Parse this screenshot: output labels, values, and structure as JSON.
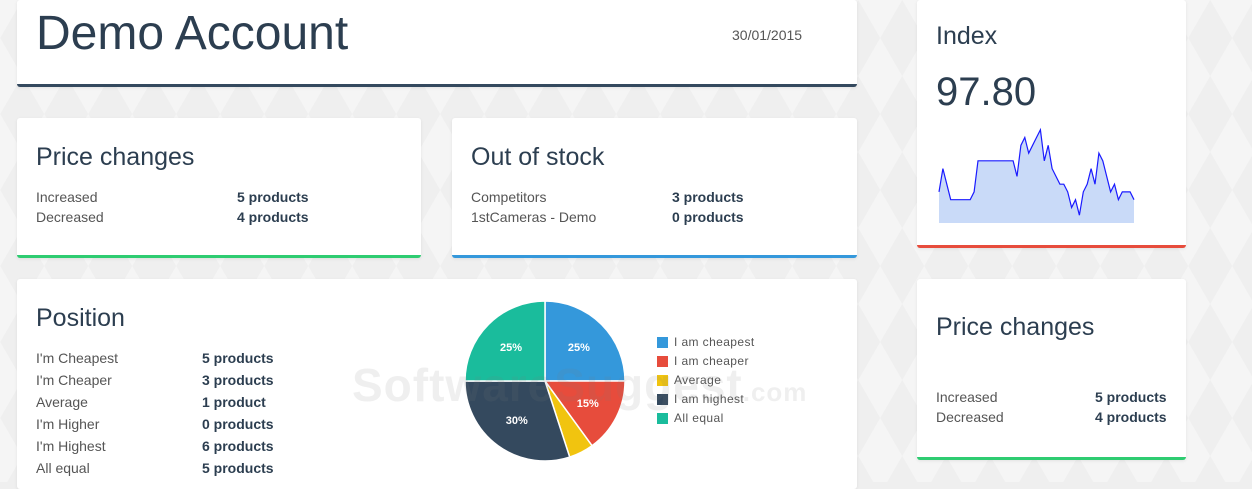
{
  "header": {
    "title": "Demo Account",
    "date": "30/01/2015"
  },
  "price_changes": {
    "title": "Price changes",
    "rows": [
      {
        "label": "Increased",
        "value": "5 products"
      },
      {
        "label": "Decreased",
        "value": "4 products"
      }
    ]
  },
  "out_of_stock": {
    "title": "Out of stock",
    "rows": [
      {
        "label": "Competitors",
        "value": "3 products"
      },
      {
        "label": "1stCameras - Demo",
        "value": "0 products"
      }
    ]
  },
  "position": {
    "title": "Position",
    "rows": [
      {
        "label": "I'm Cheapest",
        "value": "5 products"
      },
      {
        "label": "I'm Cheaper",
        "value": "3 products"
      },
      {
        "label": "Average",
        "value": "1 product"
      },
      {
        "label": "I'm Higher",
        "value": "0 products"
      },
      {
        "label": "I'm Highest",
        "value": "6 products"
      },
      {
        "label": "All equal",
        "value": "5 products"
      }
    ]
  },
  "index": {
    "title": "Index",
    "value": "97.80"
  },
  "price_changes_right": {
    "title": "Price changes",
    "rows": [
      {
        "label": "Increased",
        "value": "5 products"
      },
      {
        "label": "Decreased",
        "value": "4 products"
      }
    ]
  },
  "watermark": {
    "main": "SoftwareSuggest",
    "suffix": ".com"
  },
  "colors": {
    "green": "#2ecc71",
    "blue": "#3498db",
    "red": "#e74c3c",
    "yellow": "#f1c40f",
    "dark": "#34495e",
    "teal": "#1abc9c",
    "spark_line": "#1a1aff",
    "spark_fill": "#c9daf8"
  },
  "chart_data": [
    {
      "type": "pie",
      "categories": [
        "I am cheapest",
        "I am cheaper",
        "Average",
        "I am highest",
        "All equal"
      ],
      "values": [
        25,
        15,
        5,
        30,
        25
      ],
      "data_labels": [
        "25%",
        "15%",
        "",
        "30%",
        "25%"
      ],
      "colors": [
        "#3498db",
        "#e74c3c",
        "#f1c40f",
        "#34495e",
        "#1abc9c"
      ],
      "legend": "right"
    },
    {
      "type": "area",
      "x": [
        0,
        1,
        2,
        3,
        4,
        5,
        6,
        7,
        8,
        9,
        10,
        11,
        12,
        13,
        14,
        15,
        16,
        17,
        18,
        19,
        20,
        21,
        22,
        23,
        24,
        25,
        26,
        27,
        28,
        29,
        30,
        31,
        32,
        33,
        34,
        35,
        36,
        37,
        38,
        39,
        40,
        41,
        42,
        43,
        44,
        45,
        46,
        47,
        48,
        49,
        50
      ],
      "values": [
        92,
        95,
        93,
        91,
        91,
        91,
        91,
        91,
        91,
        92,
        96,
        96,
        96,
        96,
        96,
        96,
        96,
        96,
        96,
        96,
        94,
        98,
        99,
        97,
        98,
        99,
        100,
        96,
        98,
        95,
        94,
        93,
        93,
        92,
        90,
        91,
        89,
        92,
        93,
        95,
        93,
        97,
        96,
        94,
        92,
        93,
        91,
        92,
        92,
        92,
        91
      ],
      "ylim": [
        88,
        101
      ],
      "grid": false
    }
  ]
}
